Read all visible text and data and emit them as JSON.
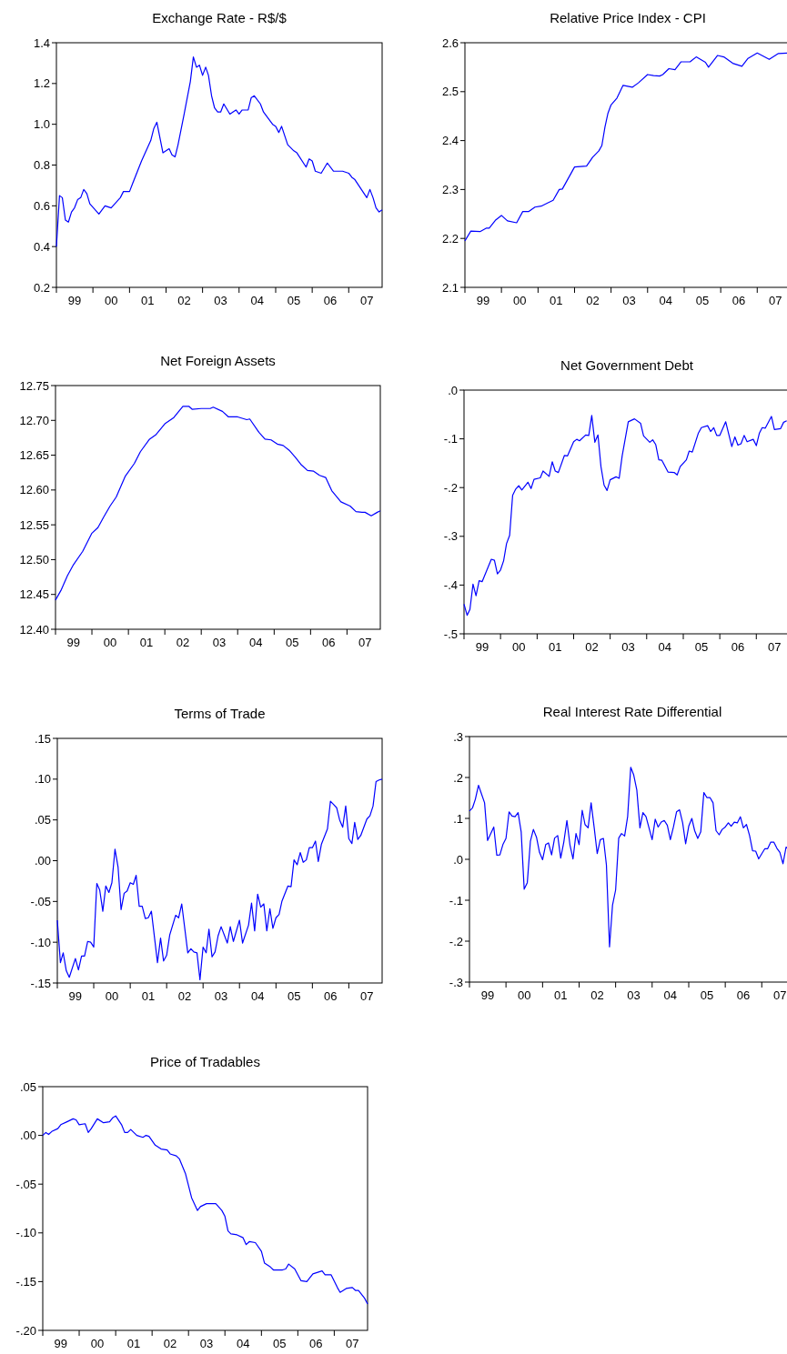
{
  "chart_data": [
    {
      "type": "line",
      "title": "Exchange Rate - R$/$",
      "color": "#0000ff",
      "xlim": [
        "1999-01",
        "2007-12"
      ],
      "ylim": [
        0.2,
        1.4
      ],
      "yticks": [
        0.2,
        0.4,
        0.6,
        0.8,
        {
          "value": 1,
          "label": "1.0"
        },
        1.2,
        1.4
      ],
      "xticks": [
        {
          "value": "1999-01",
          "label": null
        },
        {
          "value": "2000-01",
          "label": null
        },
        {
          "value": "2001-01",
          "label": null
        },
        {
          "value": "2002-01",
          "label": null
        },
        {
          "value": "2003-01",
          "label": null
        },
        {
          "value": "2004-01",
          "label": null
        },
        {
          "value": "2005-01",
          "label": null
        },
        {
          "value": "2006-01",
          "label": null
        },
        {
          "value": "2007-01",
          "label": null
        },
        {
          "value": "1999-07",
          "label": "99"
        },
        {
          "value": "2000-07",
          "label": "00"
        },
        {
          "value": "2001-07",
          "label": "01"
        },
        {
          "value": "2002-07",
          "label": "02"
        },
        {
          "value": "2003-07",
          "label": "03"
        },
        {
          "value": "2004-07",
          "label": "04"
        },
        {
          "value": "2005-07",
          "label": "05"
        },
        {
          "value": "2006-07",
          "label": "06"
        },
        {
          "value": "2007-07",
          "label": "07"
        }
      ],
      "x": [
        "1999-01",
        "1999-02",
        "1999-03",
        "1999-04",
        "1999-05",
        "1999-06",
        "1999-07",
        "1999-08",
        "1999-09",
        "1999-10",
        "1999-11",
        "1999-12",
        "2000-03",
        "2000-05",
        "2000-07",
        "2000-10",
        "2000-11",
        "2001-01",
        "2001-02",
        "2001-05",
        "2001-08",
        "2001-09",
        "2001-10",
        "2001-12",
        "2002-02",
        "2002-03",
        "2002-04",
        "2002-05",
        "2002-07",
        "2002-09",
        "2002-10",
        "2002-11",
        "2002-12",
        "2003-01",
        "2003-02",
        "2003-03",
        "2003-04",
        "2003-05",
        "2003-06",
        "2003-07",
        "2003-08",
        "2003-10",
        "2003-12",
        "2004-01",
        "2004-02",
        "2004-04",
        "2004-05",
        "2004-06",
        "2004-08",
        "2004-09",
        "2004-12",
        "2005-01",
        "2005-02",
        "2005-03",
        "2005-05",
        "2005-07",
        "2005-08",
        "2005-11",
        "2005-12",
        "2006-01",
        "2006-02",
        "2006-04",
        "2006-06",
        "2006-08",
        "2006-09",
        "2006-10",
        "2006-11",
        "2007-01",
        "2007-02",
        "2007-03",
        "2007-07",
        "2007-08",
        "2007-09",
        "2007-10",
        "2007-11",
        "2007-12"
      ],
      "values": [
        0.4,
        0.65,
        0.64,
        0.53,
        0.52,
        0.57,
        0.59,
        0.63,
        0.64,
        0.68,
        0.66,
        0.61,
        0.56,
        0.6,
        0.59,
        0.64,
        0.67,
        0.67,
        0.71,
        0.82,
        0.92,
        0.98,
        1.01,
        0.86,
        0.88,
        0.85,
        0.84,
        0.9,
        1.05,
        1.21,
        1.33,
        1.28,
        1.29,
        1.24,
        1.28,
        1.24,
        1.14,
        1.08,
        1.06,
        1.06,
        1.1,
        1.05,
        1.07,
        1.05,
        1.07,
        1.07,
        1.13,
        1.14,
        1.1,
        1.06,
        1.0,
        0.99,
        0.96,
        0.99,
        0.9,
        0.87,
        0.86,
        0.79,
        0.83,
        0.82,
        0.77,
        0.76,
        0.81,
        0.77,
        0.77,
        0.77,
        0.77,
        0.76,
        0.74,
        0.73,
        0.64,
        0.68,
        0.64,
        0.59,
        0.57,
        0.58
      ]
    },
    {
      "type": "line",
      "title": "Relative Price Index - CPI",
      "color": "#0000ff",
      "xlim": [
        "1999-01",
        "2007-12"
      ],
      "ylim": [
        2.1,
        2.6
      ],
      "yticks": [
        2.1,
        2.2,
        2.3,
        2.4,
        2.5,
        2.6
      ],
      "xticks": [
        {
          "value": "1999-01",
          "label": null
        },
        {
          "value": "2000-01",
          "label": null
        },
        {
          "value": "2001-01",
          "label": null
        },
        {
          "value": "2002-01",
          "label": null
        },
        {
          "value": "2003-01",
          "label": null
        },
        {
          "value": "2004-01",
          "label": null
        },
        {
          "value": "2005-01",
          "label": null
        },
        {
          "value": "2006-01",
          "label": null
        },
        {
          "value": "2007-01",
          "label": null
        },
        {
          "value": "1999-07",
          "label": "99"
        },
        {
          "value": "2000-07",
          "label": "00"
        },
        {
          "value": "2001-07",
          "label": "01"
        },
        {
          "value": "2002-07",
          "label": "02"
        },
        {
          "value": "2003-07",
          "label": "03"
        },
        {
          "value": "2004-07",
          "label": "04"
        },
        {
          "value": "2005-07",
          "label": "05"
        },
        {
          "value": "2006-07",
          "label": "06"
        },
        {
          "value": "2007-07",
          "label": "07"
        }
      ],
      "x": [
        "1999-01",
        "1999-03",
        "1999-06",
        "1999-08",
        "1999-09",
        "1999-11",
        "2000-01",
        "2000-03",
        "2000-06",
        "2000-08",
        "2000-10",
        "2000-12",
        "2001-02",
        "2001-04",
        "2001-06",
        "2001-08",
        "2001-09",
        "2002-01",
        "2002-05",
        "2002-07",
        "2002-09",
        "2002-10",
        "2002-11",
        "2002-12",
        "2003-01",
        "2003-03",
        "2003-05",
        "2003-08",
        "2003-10",
        "2004-01",
        "2004-03",
        "2004-05",
        "2004-06",
        "2004-08",
        "2004-10",
        "2004-12",
        "2005-03",
        "2005-05",
        "2005-08",
        "2005-09",
        "2005-12",
        "2006-02",
        "2006-05",
        "2006-08",
        "2006-10",
        "2007-01",
        "2007-05",
        "2007-08",
        "2007-11"
      ],
      "values": [
        2.195,
        2.215,
        2.214,
        2.221,
        2.221,
        2.237,
        2.247,
        2.236,
        2.232,
        2.255,
        2.255,
        2.264,
        2.266,
        2.272,
        2.278,
        2.3,
        2.301,
        2.346,
        2.348,
        2.366,
        2.379,
        2.39,
        2.428,
        2.456,
        2.473,
        2.487,
        2.513,
        2.509,
        2.518,
        2.535,
        2.533,
        2.532,
        2.535,
        2.547,
        2.545,
        2.561,
        2.561,
        2.571,
        2.56,
        2.55,
        2.574,
        2.571,
        2.558,
        2.552,
        2.568,
        2.579,
        2.566,
        2.578,
        2.579
      ]
    },
    {
      "type": "line",
      "title": "Net Foreign Assets",
      "color": "#0000ff",
      "xlim": [
        "1999-01",
        "2007-12"
      ],
      "ylim": [
        12.4,
        12.75
      ],
      "yticks": [
        {
          "value": 12.4,
          "label": "12.40"
        },
        12.45,
        {
          "value": 12.5,
          "label": "12.50"
        },
        12.55,
        {
          "value": 12.6,
          "label": "12.60"
        },
        12.65,
        {
          "value": 12.7,
          "label": "12.70"
        },
        12.75
      ],
      "xticks": [
        {
          "value": "1999-01",
          "label": null
        },
        {
          "value": "2000-01",
          "label": null
        },
        {
          "value": "2001-01",
          "label": null
        },
        {
          "value": "2002-01",
          "label": null
        },
        {
          "value": "2003-01",
          "label": null
        },
        {
          "value": "2004-01",
          "label": null
        },
        {
          "value": "2005-01",
          "label": null
        },
        {
          "value": "2006-01",
          "label": null
        },
        {
          "value": "2007-01",
          "label": null
        },
        {
          "value": "1999-07",
          "label": "99"
        },
        {
          "value": "2000-07",
          "label": "00"
        },
        {
          "value": "2001-07",
          "label": "01"
        },
        {
          "value": "2002-07",
          "label": "02"
        },
        {
          "value": "2003-07",
          "label": "03"
        },
        {
          "value": "2004-07",
          "label": "04"
        },
        {
          "value": "2005-07",
          "label": "05"
        },
        {
          "value": "2006-07",
          "label": "06"
        },
        {
          "value": "2007-07",
          "label": "07"
        }
      ],
      "x": [
        "1999-01",
        "1999-03",
        "1999-05",
        "1999-07",
        "1999-10",
        "2000-01",
        "2000-03",
        "2000-05",
        "2000-07",
        "2000-09",
        "2000-12",
        "2001-03",
        "2001-05",
        "2001-08",
        "2001-10",
        "2002-01",
        "2002-04",
        "2002-07",
        "2002-09",
        "2002-10",
        "2003-01",
        "2003-04",
        "2003-05",
        "2003-08",
        "2003-10",
        "2004-01",
        "2004-04",
        "2004-05",
        "2004-08",
        "2004-10",
        "2004-12",
        "2005-02",
        "2005-04",
        "2005-06",
        "2005-08",
        "2005-10",
        "2005-12",
        "2006-02",
        "2006-04",
        "2006-06",
        "2006-08",
        "2006-11",
        "2007-02",
        "2007-04",
        "2007-06",
        "2007-07",
        "2007-09",
        "2007-11",
        "2007-12"
      ],
      "values": [
        12.442,
        12.457,
        12.477,
        12.493,
        12.512,
        12.538,
        12.546,
        12.562,
        12.577,
        12.59,
        12.62,
        12.638,
        12.655,
        12.673,
        12.679,
        12.695,
        12.704,
        12.72,
        12.72,
        12.716,
        12.717,
        12.717,
        12.719,
        12.713,
        12.705,
        12.705,
        12.701,
        12.702,
        12.683,
        12.673,
        12.672,
        12.666,
        12.664,
        12.657,
        12.647,
        12.636,
        12.628,
        12.627,
        12.621,
        12.618,
        12.599,
        12.583,
        12.577,
        12.569,
        12.568,
        12.568,
        12.563,
        12.568,
        12.57
      ]
    },
    {
      "type": "line",
      "title": "Net Government Debt",
      "color": "#0000ff",
      "xlim": [
        "1999-01",
        "2007-12"
      ],
      "ylim": [
        -0.5,
        0
      ],
      "yticks": [
        {
          "value": -0.5,
          "label": "-.5"
        },
        {
          "value": -0.4,
          "label": "-.4"
        },
        {
          "value": -0.3,
          "label": "-.3"
        },
        {
          "value": -0.2,
          "label": "-.2"
        },
        {
          "value": -0.1,
          "label": "-.1"
        },
        {
          "value": 0,
          "label": ".0"
        }
      ],
      "xticks": [
        {
          "value": "1999-01",
          "label": null
        },
        {
          "value": "2000-01",
          "label": null
        },
        {
          "value": "2001-01",
          "label": null
        },
        {
          "value": "2002-01",
          "label": null
        },
        {
          "value": "2003-01",
          "label": null
        },
        {
          "value": "2004-01",
          "label": null
        },
        {
          "value": "2005-01",
          "label": null
        },
        {
          "value": "2006-01",
          "label": null
        },
        {
          "value": "2007-01",
          "label": null
        },
        {
          "value": "1999-07",
          "label": "99"
        },
        {
          "value": "2000-07",
          "label": "00"
        },
        {
          "value": "2001-07",
          "label": "01"
        },
        {
          "value": "2002-07",
          "label": "02"
        },
        {
          "value": "2003-07",
          "label": "03"
        },
        {
          "value": "2004-07",
          "label": "04"
        },
        {
          "value": "2005-07",
          "label": "05"
        },
        {
          "value": "2006-07",
          "label": "06"
        },
        {
          "value": "2007-07",
          "label": "07"
        }
      ],
      "x": [
        "1999-01",
        "1999-02",
        "1999-03",
        "1999-04",
        "1999-05",
        "1999-06",
        "1999-07",
        "1999-10",
        "1999-11",
        "1999-12",
        "2000-01",
        "2000-02",
        "2000-03",
        "2000-04",
        "2000-05",
        "2000-06",
        "2000-07",
        "2000-08",
        "2000-10",
        "2000-11",
        "2000-12",
        "2001-02",
        "2001-03",
        "2001-05",
        "2001-06",
        "2001-07",
        "2001-08",
        "2001-10",
        "2001-11",
        "2002-01",
        "2002-02",
        "2002-03",
        "2002-05",
        "2002-06",
        "2002-07",
        "2002-08",
        "2002-09",
        "2002-10",
        "2002-11",
        "2002-12",
        "2003-01",
        "2003-03",
        "2003-04",
        "2003-05",
        "2003-07",
        "2003-09",
        "2003-11",
        "2003-12",
        "2004-02",
        "2004-03",
        "2004-04",
        "2004-05",
        "2004-06",
        "2004-08",
        "2004-10",
        "2004-11",
        "2004-12",
        "2005-02",
        "2005-03",
        "2005-04",
        "2005-06",
        "2005-07",
        "2005-09",
        "2005-10",
        "2005-11",
        "2005-12",
        "2006-01",
        "2006-03",
        "2006-05",
        "2006-06",
        "2006-07",
        "2006-08",
        "2006-09",
        "2006-10",
        "2006-12",
        "2007-01",
        "2007-02",
        "2007-03",
        "2007-04",
        "2007-06",
        "2007-07",
        "2007-09",
        "2007-10",
        "2007-11"
      ],
      "values": [
        -0.439,
        -0.462,
        -0.45,
        -0.398,
        -0.422,
        -0.391,
        -0.393,
        -0.347,
        -0.349,
        -0.377,
        -0.369,
        -0.35,
        -0.315,
        -0.298,
        -0.216,
        -0.203,
        -0.196,
        -0.205,
        -0.189,
        -0.202,
        -0.183,
        -0.18,
        -0.166,
        -0.177,
        -0.147,
        -0.166,
        -0.169,
        -0.134,
        -0.135,
        -0.106,
        -0.101,
        -0.104,
        -0.092,
        -0.093,
        -0.052,
        -0.107,
        -0.092,
        -0.157,
        -0.195,
        -0.206,
        -0.184,
        -0.178,
        -0.181,
        -0.135,
        -0.065,
        -0.059,
        -0.068,
        -0.094,
        -0.107,
        -0.102,
        -0.112,
        -0.143,
        -0.144,
        -0.168,
        -0.169,
        -0.174,
        -0.157,
        -0.143,
        -0.125,
        -0.127,
        -0.088,
        -0.077,
        -0.073,
        -0.085,
        -0.077,
        -0.093,
        -0.093,
        -0.065,
        -0.116,
        -0.096,
        -0.113,
        -0.11,
        -0.093,
        -0.106,
        -0.101,
        -0.114,
        -0.088,
        -0.077,
        -0.078,
        -0.054,
        -0.081,
        -0.079,
        -0.066,
        -0.063
      ]
    },
    {
      "type": "line",
      "title": "Terms of Trade",
      "color": "#0000ff",
      "xlim": [
        "1999-01",
        "2007-12"
      ],
      "ylim": [
        -0.15,
        0.15
      ],
      "yticks": [
        {
          "value": -0.15,
          "label": "-.15"
        },
        {
          "value": -0.1,
          "label": "-.10"
        },
        {
          "value": -0.05,
          "label": "-.05"
        },
        {
          "value": 0,
          "label": ".00"
        },
        {
          "value": 0.05,
          "label": ".05"
        },
        {
          "value": 0.1,
          "label": ".10"
        },
        {
          "value": 0.15,
          "label": ".15"
        }
      ],
      "xticks": [
        {
          "value": "1999-01",
          "label": null
        },
        {
          "value": "2000-01",
          "label": null
        },
        {
          "value": "2001-01",
          "label": null
        },
        {
          "value": "2002-01",
          "label": null
        },
        {
          "value": "2003-01",
          "label": null
        },
        {
          "value": "2004-01",
          "label": null
        },
        {
          "value": "2005-01",
          "label": null
        },
        {
          "value": "2006-01",
          "label": null
        },
        {
          "value": "2007-01",
          "label": null
        },
        {
          "value": "1999-07",
          "label": "99"
        },
        {
          "value": "2000-07",
          "label": "00"
        },
        {
          "value": "2001-07",
          "label": "01"
        },
        {
          "value": "2002-07",
          "label": "02"
        },
        {
          "value": "2003-07",
          "label": "03"
        },
        {
          "value": "2004-07",
          "label": "04"
        },
        {
          "value": "2005-07",
          "label": "05"
        },
        {
          "value": "2006-07",
          "label": "06"
        },
        {
          "value": "2007-07",
          "label": "07"
        }
      ],
      "x": [
        "1999-01",
        "1999-02",
        "1999-03",
        "1999-04",
        "1999-05",
        "1999-07",
        "1999-08",
        "1999-09",
        "1999-10",
        "1999-11",
        "1999-12",
        "2000-01",
        "2000-02",
        "2000-03",
        "2000-04",
        "2000-05",
        "2000-06",
        "2000-07",
        "2000-08",
        "2000-09",
        "2000-10",
        "2000-11",
        "2000-12",
        "2001-01",
        "2001-02",
        "2001-03",
        "2001-04",
        "2001-05",
        "2001-06",
        "2001-07",
        "2001-08",
        "2001-10",
        "2001-11",
        "2001-12",
        "2002-01",
        "2002-02",
        "2002-04",
        "2002-05",
        "2002-06",
        "2002-08",
        "2002-09",
        "2002-10",
        "2002-11",
        "2002-12",
        "2003-01",
        "2003-02",
        "2003-03",
        "2003-04",
        "2003-05",
        "2003-06",
        "2003-07",
        "2003-09",
        "2003-10",
        "2003-11",
        "2004-01",
        "2004-02",
        "2004-04",
        "2004-05",
        "2004-06",
        "2004-07",
        "2004-08",
        "2004-09",
        "2004-10",
        "2004-11",
        "2004-12",
        "2005-01",
        "2005-02",
        "2005-03",
        "2005-05",
        "2005-06",
        "2005-07",
        "2005-08",
        "2005-09",
        "2005-10",
        "2005-11",
        "2005-12",
        "2006-01",
        "2006-02",
        "2006-03",
        "2006-04",
        "2006-06",
        "2006-07",
        "2006-08",
        "2006-09",
        "2006-10",
        "2006-11",
        "2006-12",
        "2007-01",
        "2007-02",
        "2007-03",
        "2007-04",
        "2007-05",
        "2007-07",
        "2007-08",
        "2007-09",
        "2007-10",
        "2007-11",
        "2007-12"
      ],
      "values": [
        -0.073,
        -0.125,
        -0.113,
        -0.135,
        -0.143,
        -0.12,
        -0.134,
        -0.117,
        -0.117,
        -0.099,
        -0.1,
        -0.106,
        -0.028,
        -0.036,
        -0.062,
        -0.031,
        -0.039,
        -0.027,
        0.014,
        -0.008,
        -0.06,
        -0.04,
        -0.037,
        -0.027,
        -0.029,
        -0.018,
        -0.056,
        -0.056,
        -0.071,
        -0.07,
        -0.062,
        -0.125,
        -0.095,
        -0.123,
        -0.116,
        -0.091,
        -0.067,
        -0.07,
        -0.053,
        -0.113,
        -0.108,
        -0.112,
        -0.113,
        -0.146,
        -0.106,
        -0.113,
        -0.084,
        -0.118,
        -0.112,
        -0.092,
        -0.081,
        -0.101,
        -0.081,
        -0.099,
        -0.073,
        -0.101,
        -0.079,
        -0.052,
        -0.086,
        -0.041,
        -0.057,
        -0.053,
        -0.086,
        -0.059,
        -0.083,
        -0.07,
        -0.066,
        -0.05,
        -0.031,
        -0.032,
        0.001,
        -0.005,
        0.01,
        -0.002,
        0.001,
        0.016,
        0.016,
        0.024,
        -0.001,
        0.02,
        0.039,
        0.073,
        0.069,
        0.065,
        0.05,
        0.041,
        0.067,
        0.027,
        0.021,
        0.047,
        0.026,
        0.031,
        0.051,
        0.055,
        0.067,
        0.097,
        0.099,
        0.1
      ]
    },
    {
      "type": "line",
      "title": "Real Interest Rate Differential",
      "color": "#0000ff",
      "xlim": [
        "1999-01",
        "2007-12"
      ],
      "ylim": [
        -0.3,
        0.3
      ],
      "yticks": [
        {
          "value": -0.3,
          "label": "-.3"
        },
        {
          "value": -0.2,
          "label": "-.2"
        },
        {
          "value": -0.1,
          "label": "-.1"
        },
        {
          "value": 0,
          "label": ".0"
        },
        {
          "value": 0.1,
          "label": ".1"
        },
        {
          "value": 0.2,
          "label": ".2"
        },
        {
          "value": 0.3,
          "label": ".3"
        }
      ],
      "xticks": [
        {
          "value": "1999-01",
          "label": null
        },
        {
          "value": "2000-01",
          "label": null
        },
        {
          "value": "2001-01",
          "label": null
        },
        {
          "value": "2002-01",
          "label": null
        },
        {
          "value": "2003-01",
          "label": null
        },
        {
          "value": "2004-01",
          "label": null
        },
        {
          "value": "2005-01",
          "label": null
        },
        {
          "value": "2006-01",
          "label": null
        },
        {
          "value": "2007-01",
          "label": null
        },
        {
          "value": "1999-07",
          "label": "99"
        },
        {
          "value": "2000-07",
          "label": "00"
        },
        {
          "value": "2001-07",
          "label": "01"
        },
        {
          "value": "2002-07",
          "label": "02"
        },
        {
          "value": "2003-07",
          "label": "03"
        },
        {
          "value": "2004-07",
          "label": "04"
        },
        {
          "value": "2005-07",
          "label": "05"
        },
        {
          "value": "2006-07",
          "label": "06"
        },
        {
          "value": "2007-07",
          "label": "07"
        }
      ],
      "x": [
        "1999-01",
        "1999-02",
        "1999-03",
        "1999-04",
        "1999-06",
        "1999-07",
        "1999-09",
        "1999-10",
        "1999-11",
        "1999-12",
        "2000-01",
        "2000-02",
        "2000-03",
        "2000-04",
        "2000-05",
        "2000-06",
        "2000-07",
        "2000-08",
        "2000-09",
        "2000-10",
        "2000-11",
        "2000-12",
        "2001-01",
        "2001-02",
        "2001-03",
        "2001-04",
        "2001-05",
        "2001-06",
        "2001-07",
        "2001-08",
        "2001-09",
        "2001-10",
        "2001-11",
        "2001-12",
        "2002-01",
        "2002-02",
        "2002-03",
        "2002-04",
        "2002-05",
        "2002-06",
        "2002-07",
        "2002-08",
        "2002-09",
        "2002-10",
        "2002-11",
        "2002-12",
        "2003-01",
        "2003-02",
        "2003-03",
        "2003-04",
        "2003-05",
        "2003-06",
        "2003-07",
        "2003-08",
        "2003-09",
        "2003-10",
        "2003-11",
        "2004-01",
        "2004-02",
        "2004-03",
        "2004-04",
        "2004-05",
        "2004-06",
        "2004-07",
        "2004-08",
        "2004-09",
        "2004-10",
        "2004-11",
        "2004-12",
        "2005-01",
        "2005-02",
        "2005-03",
        "2005-04",
        "2005-05",
        "2005-06",
        "2005-07",
        "2005-08",
        "2005-09",
        "2005-10",
        "2005-11",
        "2005-12",
        "2006-01",
        "2006-02",
        "2006-03",
        "2006-04",
        "2006-05",
        "2006-06",
        "2006-07",
        "2006-08",
        "2006-09",
        "2006-10",
        "2006-11",
        "2006-12",
        "2007-02",
        "2007-03",
        "2007-04",
        "2007-05",
        "2007-06",
        "2007-07",
        "2007-08",
        "2007-09",
        "2007-10"
      ],
      "values": [
        0.118,
        0.126,
        0.147,
        0.181,
        0.138,
        0.046,
        0.079,
        0.01,
        0.011,
        0.036,
        0.051,
        0.116,
        0.106,
        0.104,
        0.114,
        0.067,
        -0.073,
        -0.057,
        0.044,
        0.073,
        0.054,
        0.017,
        -0.001,
        0.036,
        0.04,
        0.011,
        0.052,
        0.058,
        0.003,
        0.042,
        0.095,
        0.036,
        0.001,
        0.063,
        0.036,
        0.12,
        0.085,
        0.077,
        0.138,
        0.077,
        0.014,
        0.048,
        0.051,
        -0.014,
        -0.214,
        -0.112,
        -0.075,
        0.052,
        0.063,
        0.057,
        0.104,
        0.225,
        0.206,
        0.169,
        0.077,
        0.114,
        0.104,
        0.048,
        0.098,
        0.079,
        0.091,
        0.095,
        0.083,
        0.048,
        0.079,
        0.116,
        0.121,
        0.089,
        0.038,
        0.081,
        0.1,
        0.07,
        0.051,
        0.067,
        0.163,
        0.151,
        0.151,
        0.138,
        0.07,
        0.06,
        0.073,
        0.079,
        0.089,
        0.081,
        0.091,
        0.089,
        0.104,
        0.077,
        0.085,
        0.058,
        0.021,
        0.02,
        0.001,
        0.026,
        0.026,
        0.042,
        0.042,
        0.027,
        0.017,
        -0.011,
        0.03,
        0.023
      ]
    },
    {
      "type": "line",
      "title": "Price of Tradables",
      "color": "#0000ff",
      "xlim": [
        "1999-01",
        "2007-12"
      ],
      "ylim": [
        -0.2,
        0.05
      ],
      "yticks": [
        {
          "value": -0.2,
          "label": "-.20"
        },
        {
          "value": -0.15,
          "label": "-.15"
        },
        {
          "value": -0.1,
          "label": "-.10"
        },
        {
          "value": -0.05,
          "label": "-.05"
        },
        {
          "value": 0,
          "label": ".00"
        },
        {
          "value": 0.05,
          "label": ".05"
        }
      ],
      "xticks": [
        {
          "value": "1999-01",
          "label": null
        },
        {
          "value": "2000-01",
          "label": null
        },
        {
          "value": "2001-01",
          "label": null
        },
        {
          "value": "2002-01",
          "label": null
        },
        {
          "value": "2003-01",
          "label": null
        },
        {
          "value": "2004-01",
          "label": null
        },
        {
          "value": "2005-01",
          "label": null
        },
        {
          "value": "2006-01",
          "label": null
        },
        {
          "value": "2007-01",
          "label": null
        },
        {
          "value": "1999-07",
          "label": "99"
        },
        {
          "value": "2000-07",
          "label": "00"
        },
        {
          "value": "2001-07",
          "label": "01"
        },
        {
          "value": "2002-07",
          "label": "02"
        },
        {
          "value": "2003-07",
          "label": "03"
        },
        {
          "value": "2004-07",
          "label": "04"
        },
        {
          "value": "2005-07",
          "label": "05"
        },
        {
          "value": "2006-07",
          "label": "06"
        },
        {
          "value": "2007-07",
          "label": "07"
        }
      ],
      "x": [
        "1999-01",
        "1999-02",
        "1999-03",
        "1999-04",
        "1999-06",
        "1999-07",
        "1999-09",
        "1999-11",
        "1999-12",
        "2000-01",
        "2000-03",
        "2000-04",
        "2000-05",
        "2000-07",
        "2000-09",
        "2000-11",
        "2000-12",
        "2001-01",
        "2001-03",
        "2001-04",
        "2001-05",
        "2001-06",
        "2001-08",
        "2001-10",
        "2001-11",
        "2001-12",
        "2002-02",
        "2002-04",
        "2002-06",
        "2002-07",
        "2002-09",
        "2002-10",
        "2002-12",
        "2003-02",
        "2003-04",
        "2003-05",
        "2003-07",
        "2003-10",
        "2003-12",
        "2004-01",
        "2004-02",
        "2004-03",
        "2004-05",
        "2004-07",
        "2004-08",
        "2004-09",
        "2004-11",
        "2005-01",
        "2005-02",
        "2005-04",
        "2005-05",
        "2005-08",
        "2005-09",
        "2005-10",
        "2005-12",
        "2006-02",
        "2006-04",
        "2006-06",
        "2006-09",
        "2006-10",
        "2006-12",
        "2007-02",
        "2007-03",
        "2007-05",
        "2007-07",
        "2007-08",
        "2007-09",
        "2007-11",
        "2007-12"
      ],
      "values": [
        0.0,
        0.003,
        0.001,
        0.004,
        0.007,
        0.011,
        0.014,
        0.017,
        0.016,
        0.011,
        0.012,
        0.003,
        0.007,
        0.017,
        0.013,
        0.014,
        0.018,
        0.02,
        0.011,
        0.003,
        0.003,
        0.006,
        0.0,
        -0.002,
        0.0,
        -0.001,
        -0.01,
        -0.014,
        -0.015,
        -0.019,
        -0.021,
        -0.024,
        -0.039,
        -0.064,
        -0.077,
        -0.073,
        -0.07,
        -0.07,
        -0.077,
        -0.083,
        -0.098,
        -0.101,
        -0.102,
        -0.105,
        -0.112,
        -0.109,
        -0.11,
        -0.119,
        -0.131,
        -0.135,
        -0.138,
        -0.138,
        -0.137,
        -0.132,
        -0.137,
        -0.149,
        -0.15,
        -0.142,
        -0.139,
        -0.143,
        -0.143,
        -0.156,
        -0.161,
        -0.157,
        -0.156,
        -0.159,
        -0.159,
        -0.167,
        -0.173
      ]
    }
  ]
}
